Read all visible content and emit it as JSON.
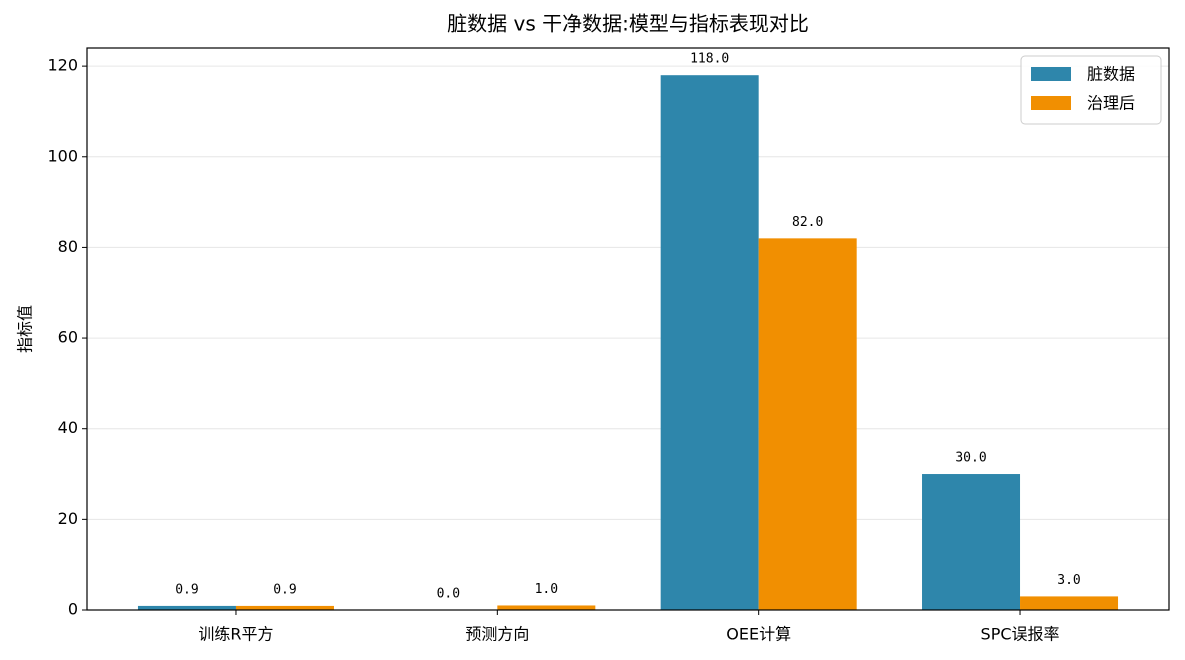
{
  "chart_data": {
    "type": "bar",
    "title": "脏数据 vs 干净数据:模型与指标表现对比",
    "ylabel": "指标值",
    "categories": [
      "训练R平方",
      "预测方向",
      "OEE计算",
      "SPC误报率"
    ],
    "series": [
      {
        "name": "脏数据",
        "color": "#2e86ab",
        "values": [
          0.9,
          0.0,
          118.0,
          30.0
        ],
        "value_labels": [
          "0.9",
          "0.0",
          "118.0",
          "30.0"
        ]
      },
      {
        "name": "治理后",
        "color": "#f18f01",
        "values": [
          0.9,
          1.0,
          82.0,
          3.0
        ],
        "value_labels": [
          "0.9",
          "1.0",
          "82.0",
          "3.0"
        ]
      }
    ],
    "ylim": [
      0,
      124
    ],
    "yticks": [
      0,
      20,
      40,
      60,
      80,
      100,
      120
    ],
    "grid": true,
    "legend": "upper-right"
  }
}
